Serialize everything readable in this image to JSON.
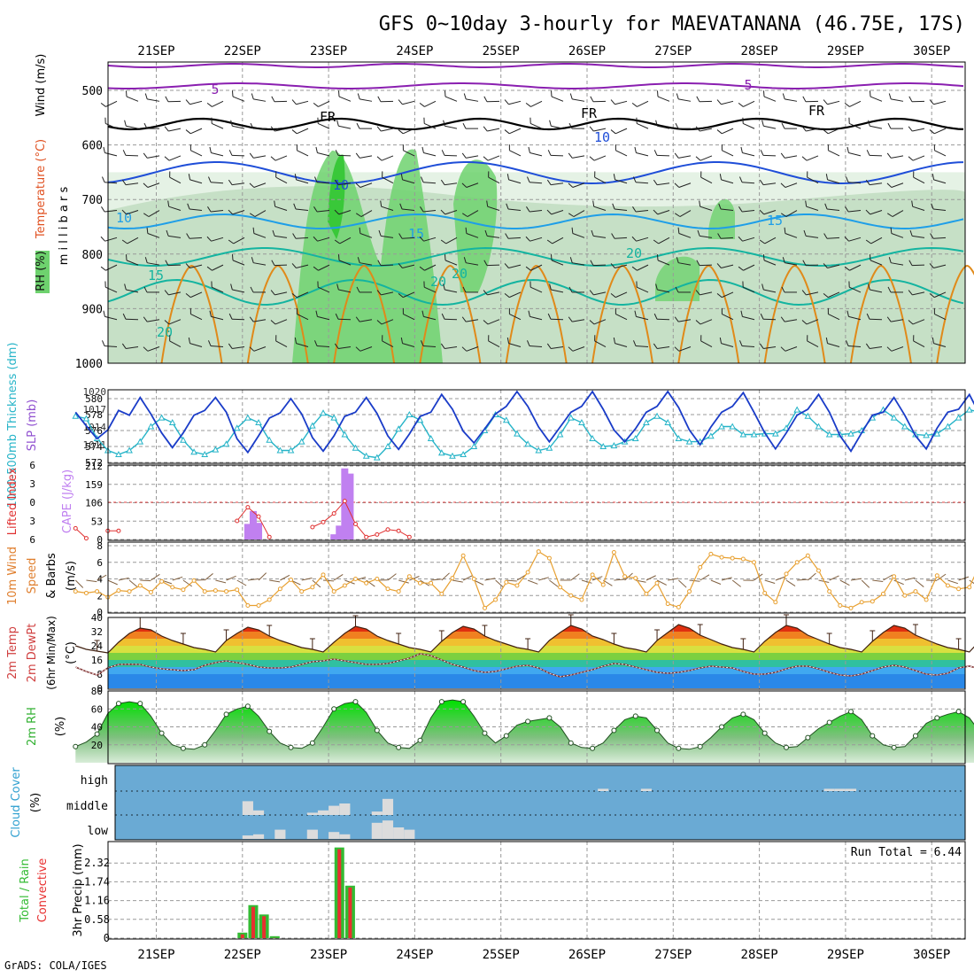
{
  "title": "GFS 0~10day 3-hourly for MAEVATANANA (46.75E, 17S)",
  "credit": "GrADS: COLA/IGES",
  "days": [
    "21SEP",
    "22SEP",
    "23SEP",
    "24SEP",
    "25SEP",
    "26SEP",
    "27SEP",
    "28SEP",
    "29SEP",
    "30SEP"
  ],
  "colors": {
    "rh_light": "#e5f2e5",
    "rh_mid": "#b9d8b9",
    "rh_gray": "#a8b8a8",
    "rh_green": "#6ed26e",
    "rh_bright": "#39c839",
    "temp_purple": "#8a1fb0",
    "temp_blue": "#1f4ed8",
    "temp_sky": "#1e9ee8",
    "temp_teal": "#14b4a0",
    "temp_orange": "#e08a1a",
    "freezing": "#000000",
    "slp": "#1a3cc8",
    "thickness": "#26b4c8",
    "cape": "#c080f0",
    "li": "#e03030",
    "wind_speed": "#e8a030",
    "barb": "#806040",
    "rh2m": "#30b030",
    "cloud_bg": "#6aaad4",
    "cloud": "#dcdcdc",
    "precip_total": "#33bb33",
    "precip_conv": "#e83030",
    "grid": "#999999"
  },
  "chart_data": [
    {
      "type": "heatmap",
      "panel": "upper_air",
      "ylabel_parts": [
        "RH (%)",
        "Temperature (°C)",
        "Wind (m/s)"
      ],
      "ylabel_sub": "m i l l i b a r s",
      "y_ticks": [
        500,
        600,
        700,
        800,
        900,
        1000
      ],
      "isotherm_labels": [
        "5",
        "5",
        "10",
        "10",
        "10",
        "15",
        "15",
        "15",
        "20",
        "20",
        "20",
        "20",
        "FR",
        "FR",
        "FR"
      ],
      "rh_note": "shaded humid layers 650-1000 mb, moistest 23SEP-24SEP"
    },
    {
      "type": "line",
      "panel": "thickness_slp",
      "ylabel_left": "1000-500mb Thickness (dm)",
      "ylabel_right": "SLP (mb)",
      "left_ticks": [
        572,
        574,
        576,
        578,
        580
      ],
      "right_ticks": [
        1011,
        1014,
        1017,
        1020
      ],
      "series": [
        {
          "name": "SLP",
          "axis": "right",
          "values": [
            1016.5,
            1014.2,
            1012.0,
            1013.5,
            1016.8,
            1016.0,
            1019.0,
            1016.2,
            1013.0,
            1010.5,
            1013.0,
            1016.0,
            1016.8,
            1019.0,
            1016.5,
            1012.0,
            1009.7,
            1012.5,
            1015.5,
            1016.4,
            1018.8,
            1016.2,
            1012.2,
            1009.9,
            1012.5,
            1015.8,
            1016.5,
            1019.0,
            1016.3,
            1012.5,
            1010.2,
            1012.8,
            1015.8,
            1016.5,
            1019.5,
            1017.0,
            1013.3,
            1011.3,
            1013.7,
            1016.2,
            1017.5,
            1020.0,
            1017.5,
            1014.0,
            1011.5,
            1014.0,
            1016.5,
            1017.5,
            1020.0,
            1017.0,
            1013.5,
            1011.5,
            1013.7,
            1016.5,
            1017.5,
            1020.0,
            1017.3,
            1013.5,
            1011.0,
            1014.0,
            1016.5,
            1017.5,
            1019.8,
            1016.5,
            1013.0,
            1010.3,
            1013.0,
            1016.0,
            1017.0,
            1019.5,
            1016.5,
            1012.5,
            1009.9,
            1013.0,
            1016.0,
            1016.5,
            1019.0,
            1016.0,
            1012.5,
            1010.3,
            1013.8,
            1016.5,
            1017.0,
            1019.5,
            1016.0,
            1012.0,
            1009.6,
            1013.0,
            1016.0,
            1017.0,
            1018.0
          ]
        },
        {
          "name": "Thickness",
          "axis": "left",
          "values": [
            577.8,
            577.5,
            575.0,
            573.5,
            573.0,
            573.5,
            574.6,
            576.5,
            577.6,
            577.0,
            574.8,
            573.3,
            573.0,
            573.6,
            574.3,
            576.3,
            577.6,
            577.0,
            574.8,
            573.5,
            573.5,
            574.6,
            576.6,
            578.2,
            577.6,
            575.5,
            573.8,
            572.8,
            572.6,
            574.0,
            576.2,
            578.0,
            577.3,
            575.0,
            573.2,
            572.8,
            573.0,
            574.0,
            576.0,
            578.0,
            577.3,
            575.6,
            574.3,
            573.5,
            573.8,
            575.5,
            577.6,
            577.0,
            575.0,
            574.0,
            574.1,
            574.6,
            575.0,
            577.0,
            577.8,
            577.0,
            575.0,
            574.6,
            574.6,
            575.3,
            576.5,
            576.5,
            575.5,
            575.5,
            575.6,
            575.6,
            576.3,
            578.6,
            577.8,
            576.5,
            575.5,
            575.5,
            575.6,
            576.0,
            577.6,
            578.6,
            577.6,
            576.5,
            575.5,
            575.4,
            575.6,
            576.5,
            577.6,
            578.6,
            578.3,
            576.5,
            575.6,
            575.0,
            574.0,
            574.6,
            576.0
          ]
        }
      ]
    },
    {
      "type": "bar",
      "panel": "cape_li",
      "ylabel_left": "Lifted Index",
      "ylabel_right": "CAPE (J/kg)",
      "left_ticks": [
        6,
        3,
        0,
        -3,
        -6
      ],
      "right_ticks": [
        0,
        53,
        106,
        159,
        212
      ],
      "cape_bars": [
        {
          "t": 16.0,
          "value": 45
        },
        {
          "t": 16.5,
          "value": 82
        },
        {
          "t": 17.0,
          "value": 48
        },
        {
          "t": 24.0,
          "value": 15
        },
        {
          "t": 24.5,
          "value": 40
        },
        {
          "t": 25.0,
          "value": 205
        },
        {
          "t": 25.5,
          "value": 190
        }
      ],
      "li_series": [
        {
          "t": 0,
          "value": 4.2
        },
        {
          "t": 1,
          "value": 5.8
        },
        {
          "t": 3,
          "value": 4.6
        },
        {
          "t": 4,
          "value": 4.6
        },
        {
          "t": 15,
          "value": 3.0
        },
        {
          "t": 16,
          "value": 0.8
        },
        {
          "t": 17,
          "value": 2.3
        },
        {
          "t": 18,
          "value": 5.6
        },
        {
          "t": 22,
          "value": 4.0
        },
        {
          "t": 23,
          "value": 3.2
        },
        {
          "t": 24,
          "value": 1.8
        },
        {
          "t": 25,
          "value": -0.2
        },
        {
          "t": 26,
          "value": 3.5
        },
        {
          "t": 27,
          "value": 5.6
        },
        {
          "t": 28,
          "value": 5.2
        },
        {
          "t": 29,
          "value": 4.4
        },
        {
          "t": 30,
          "value": 4.6
        },
        {
          "t": 31,
          "value": 5.6
        }
      ]
    },
    {
      "type": "line",
      "panel": "wind10m",
      "ylabel": "10m Wind Speed & Barbs (m/s)",
      "y_ticks": [
        0,
        2,
        4,
        6,
        8
      ],
      "values": [
        2.5,
        2.3,
        2.5,
        1.8,
        2.6,
        2.5,
        3.2,
        2.4,
        3.7,
        3.0,
        2.7,
        3.8,
        2.5,
        2.6,
        2.5,
        2.7,
        0.8,
        0.8,
        1.5,
        2.8,
        3.9,
        2.5,
        3.0,
        4.5,
        2.5,
        3.2,
        4.0,
        3.5,
        4.0,
        2.8,
        2.5,
        4.3,
        3.5,
        3.5,
        2.2,
        4.1,
        6.8,
        4.0,
        0.5,
        1.5,
        3.6,
        3.2,
        4.8,
        7.3,
        6.5,
        3.0,
        2.0,
        1.5,
        4.5,
        3.3,
        7.2,
        4.3,
        4.1,
        2.2,
        3.5,
        1.0,
        0.6,
        2.5,
        5.4,
        7.0,
        6.6,
        6.5,
        6.4,
        6.0,
        2.3,
        1.2,
        4.6,
        6.0,
        6.8,
        5.0,
        2.5,
        0.8,
        0.5,
        1.2,
        1.3,
        2.2,
        4.3,
        2.0,
        2.5,
        1.5,
        4.4,
        3.2,
        2.8,
        3.0,
        5.8,
        3.5,
        2.2,
        1.7,
        3.6,
        7.2,
        3.5,
        2.8,
        2.2
      ]
    },
    {
      "type": "area",
      "panel": "temp2m",
      "ylabel": "2m Temp 2m DewPt (6hr Min/Max) (°C)",
      "y_ticks": [
        0,
        8,
        16,
        24,
        32,
        40
      ],
      "temp_values": [
        24.0,
        22.0,
        21.0,
        20.0,
        26.0,
        31.0,
        34.0,
        33.0,
        29.5,
        27.0,
        25.0,
        23.0,
        22.0,
        20.5,
        27.0,
        31.0,
        34.5,
        33.0,
        29.5,
        27.0,
        25.0,
        23.0,
        22.0,
        20.5,
        26.0,
        31.0,
        35.0,
        33.5,
        29.5,
        27.0,
        25.0,
        23.0,
        22.0,
        20.5,
        26.5,
        31.5,
        35.0,
        33.5,
        29.5,
        27.0,
        25.0,
        23.0,
        22.0,
        20.5,
        27.0,
        31.5,
        35.5,
        33.5,
        29.5,
        27.5,
        25.0,
        23.0,
        22.0,
        20.5,
        27.0,
        31.5,
        36.0,
        34.0,
        30.0,
        27.5,
        25.0,
        23.0,
        22.0,
        20.5,
        26.5,
        31.5,
        35.5,
        34.0,
        30.0,
        27.5,
        25.0,
        23.0,
        22.0,
        20.5,
        26.5,
        31.5,
        35.5,
        34.0,
        30.0,
        27.5,
        25.0,
        23.0,
        22.0,
        20.5,
        27.0,
        31.5,
        35.0,
        33.0,
        29.5,
        27.0,
        21.0,
        27.0
      ],
      "dewpt_values": [
        12.0,
        9.5,
        7.5,
        11.5,
        13.5,
        13.6,
        13.5,
        12.0,
        11.0,
        10.5,
        10.0,
        10.5,
        13.0,
        14.5,
        15.5,
        14.5,
        13.5,
        12.0,
        11.5,
        11.5,
        12.0,
        13.5,
        15.0,
        15.5,
        16.5,
        15.5,
        14.5,
        13.5,
        13.5,
        14.0,
        15.5,
        17.0,
        19.5,
        18.5,
        16.0,
        13.5,
        12.0,
        10.0,
        9.0,
        9.5,
        11.0,
        12.5,
        13.0,
        11.5,
        8.5,
        6.5,
        7.5,
        9.0,
        10.5,
        12.5,
        14.0,
        13.5,
        12.0,
        10.5,
        9.0,
        8.5,
        9.0,
        10.0,
        11.5,
        12.5,
        12.0,
        11.5,
        9.5,
        8.0,
        8.0,
        9.0,
        11.0,
        12.5,
        12.5,
        11.0,
        9.0,
        7.5,
        7.0,
        8.0,
        10.0,
        12.0,
        13.0,
        12.0,
        10.0,
        8.0,
        7.5,
        8.5,
        11.5,
        12.5,
        11.0,
        8.5,
        6.8,
        8.5,
        11.0,
        11.5
      ]
    },
    {
      "type": "area",
      "panel": "rh2m",
      "ylabel": "2m RH (%)",
      "y_ticks": [
        20,
        40,
        60,
        80
      ],
      "values": [
        18,
        23,
        32,
        55,
        66,
        68,
        66,
        52,
        33,
        20,
        16,
        15,
        20,
        36,
        54,
        60,
        63,
        52,
        35,
        22,
        17,
        16,
        22,
        40,
        60,
        66,
        68,
        56,
        36,
        22,
        17,
        16,
        25,
        50,
        68,
        70,
        68,
        52,
        33,
        22,
        30,
        42,
        46,
        48,
        50,
        40,
        22,
        17,
        16,
        22,
        36,
        48,
        52,
        50,
        36,
        22,
        16,
        15,
        18,
        28,
        40,
        50,
        54,
        48,
        33,
        22,
        17,
        18,
        28,
        38,
        45,
        52,
        57,
        48,
        30,
        20,
        17,
        18,
        30,
        44,
        50,
        54,
        57,
        50,
        34,
        22,
        18,
        30,
        42,
        50,
        42,
        35
      ]
    },
    {
      "type": "bar",
      "panel": "cloud",
      "ylabel": "Cloud Cover (%)",
      "layers": [
        "high",
        "middle",
        "low"
      ],
      "blocks": [
        {
          "t": 16,
          "layer": "middle",
          "pct": 60
        },
        {
          "t": 17,
          "layer": "middle",
          "pct": 20
        },
        {
          "t": 16,
          "layer": "low",
          "pct": 15
        },
        {
          "t": 17,
          "layer": "low",
          "pct": 20
        },
        {
          "t": 19,
          "layer": "low",
          "pct": 40
        },
        {
          "t": 22,
          "layer": "middle",
          "pct": 10
        },
        {
          "t": 23,
          "layer": "middle",
          "pct": 20
        },
        {
          "t": 24,
          "layer": "middle",
          "pct": 40
        },
        {
          "t": 25,
          "layer": "middle",
          "pct": 50
        },
        {
          "t": 22,
          "layer": "low",
          "pct": 40
        },
        {
          "t": 24,
          "layer": "low",
          "pct": 30
        },
        {
          "t": 25,
          "layer": "low",
          "pct": 20
        },
        {
          "t": 28,
          "layer": "middle",
          "pct": 15
        },
        {
          "t": 29,
          "layer": "middle",
          "pct": 70
        },
        {
          "t": 28,
          "layer": "low",
          "pct": 70
        },
        {
          "t": 29,
          "layer": "low",
          "pct": 80
        },
        {
          "t": 30,
          "layer": "low",
          "pct": 50
        },
        {
          "t": 31,
          "layer": "low",
          "pct": 40
        },
        {
          "t": 49,
          "layer": "high",
          "pct": 10
        },
        {
          "t": 53,
          "layer": "high",
          "pct": 10
        },
        {
          "t": 70,
          "layer": "high",
          "pct": 10
        },
        {
          "t": 71,
          "layer": "high",
          "pct": 10
        },
        {
          "t": 72,
          "layer": "high",
          "pct": 10
        }
      ]
    },
    {
      "type": "bar",
      "panel": "precip",
      "ylabel_total": "Total / Rain",
      "ylabel_conv": "Convective",
      "ylabel_units": "3hr Precip (mm)",
      "run_total": "Run Total = 6.44",
      "y_ticks": [
        "0",
        "0.58",
        "1.16",
        "1.74",
        "2.32"
      ],
      "bars": [
        {
          "t": 15.5,
          "value": 0.17
        },
        {
          "t": 16.5,
          "value": 1.02
        },
        {
          "t": 17.5,
          "value": 0.73
        },
        {
          "t": 18.5,
          "value": 0.06
        },
        {
          "t": 24.5,
          "value": 2.8
        },
        {
          "t": 25.5,
          "value": 1.62
        }
      ]
    }
  ]
}
